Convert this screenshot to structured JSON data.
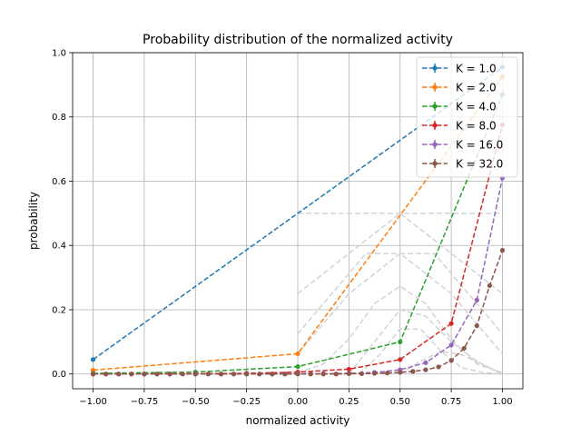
{
  "chart_data": {
    "type": "line",
    "title": "Probability distribution of the normalized activity",
    "xlabel": "normalized activity",
    "ylabel": "probability",
    "xlim": [
      -1.1,
      1.1
    ],
    "ylim": [
      -0.046,
      1.0
    ],
    "xticks": [
      -1.0,
      -0.75,
      -0.5,
      -0.25,
      0.0,
      0.25,
      0.5,
      0.75,
      1.0
    ],
    "xtick_labels": [
      "−1.00",
      "−0.75",
      "−0.50",
      "−0.25",
      "0.00",
      "0.25",
      "0.50",
      "0.75",
      "1.00"
    ],
    "yticks": [
      0.0,
      0.2,
      0.4,
      0.6,
      0.8,
      1.0
    ],
    "ytick_labels": [
      "0.0",
      "0.2",
      "0.4",
      "0.6",
      "0.8",
      "1.0"
    ],
    "grid": true,
    "legend_position": "top-right",
    "series": [
      {
        "name": "K = 1.0",
        "color": "#1f77b4",
        "x": [
          -1.0,
          1.0
        ],
        "y": [
          0.045,
          0.955
        ]
      },
      {
        "name": "K = 2.0",
        "color": "#ff7f0e",
        "x": [
          -1.0,
          0.0,
          1.0
        ],
        "y": [
          0.012,
          0.063,
          0.925
        ]
      },
      {
        "name": "K = 4.0",
        "color": "#2ca02c",
        "x": [
          -1.0,
          -0.5,
          0.0,
          0.5,
          1.0
        ],
        "y": [
          0.002,
          0.006,
          0.023,
          0.1,
          0.87
        ]
      },
      {
        "name": "K = 8.0",
        "color": "#d62728",
        "x": [
          -1.0,
          -0.75,
          -0.5,
          -0.25,
          0.0,
          0.25,
          0.5,
          0.75,
          1.0
        ],
        "y": [
          0.0,
          0.0,
          0.001,
          0.002,
          0.006,
          0.015,
          0.045,
          0.157,
          0.775
        ]
      },
      {
        "name": "K = 16.0",
        "color": "#9467bd",
        "x": [
          -1.0,
          -0.875,
          -0.75,
          -0.625,
          -0.5,
          -0.375,
          -0.25,
          -0.125,
          0.0,
          0.125,
          0.25,
          0.375,
          0.5,
          0.625,
          0.75,
          0.875,
          1.0
        ],
        "y": [
          0.0,
          0.0,
          0.0,
          0.0,
          0.0,
          0.0,
          0.0,
          0.0,
          0.001,
          0.001,
          0.002,
          0.005,
          0.013,
          0.035,
          0.09,
          0.23,
          0.61
        ]
      },
      {
        "name": "K = 32.0",
        "color": "#8c564b",
        "x": [
          -1.0,
          -0.9375,
          -0.875,
          -0.8125,
          -0.75,
          -0.6875,
          -0.625,
          -0.5625,
          -0.5,
          -0.4375,
          -0.375,
          -0.3125,
          -0.25,
          -0.1875,
          -0.125,
          -0.0625,
          0.0,
          0.0625,
          0.125,
          0.1875,
          0.25,
          0.3125,
          0.375,
          0.4375,
          0.5,
          0.5625,
          0.625,
          0.6875,
          0.75,
          0.8125,
          0.875,
          0.9375,
          1.0
        ],
        "y": [
          0.0,
          0.0,
          0.0,
          0.0,
          0.0,
          0.0,
          0.0,
          0.0,
          0.0,
          0.0,
          0.0,
          0.0,
          0.0,
          0.0,
          0.0,
          0.0,
          0.0,
          0.0,
          0.0,
          0.0,
          0.001,
          0.001,
          0.002,
          0.003,
          0.005,
          0.008,
          0.013,
          0.022,
          0.042,
          0.08,
          0.15,
          0.275,
          0.385
        ]
      }
    ],
    "background_curves": [
      {
        "x": [
          0.0,
          1.0
        ],
        "y": [
          0.5,
          0.5
        ]
      },
      {
        "x": [
          0.0,
          0.5,
          1.0
        ],
        "y": [
          0.25,
          0.5,
          0.25
        ]
      },
      {
        "x": [
          0.0,
          0.333,
          0.667,
          1.0
        ],
        "y": [
          0.125,
          0.375,
          0.375,
          0.125
        ]
      },
      {
        "x": [
          0.0,
          0.25,
          0.5,
          0.75,
          1.0
        ],
        "y": [
          0.0625,
          0.25,
          0.375,
          0.25,
          0.0625
        ]
      },
      {
        "x": [
          0.0,
          0.125,
          0.25,
          0.375,
          0.5,
          0.625,
          0.75,
          0.875,
          1.0
        ],
        "y": [
          0.004,
          0.031,
          0.109,
          0.219,
          0.273,
          0.219,
          0.109,
          0.031,
          0.004
        ]
      },
      {
        "x": [
          0.25,
          0.375,
          0.5,
          0.625,
          0.75,
          0.875,
          1.0
        ],
        "y": [
          0.0,
          0.1,
          0.2,
          0.18,
          0.1,
          0.04,
          0.0
        ]
      },
      {
        "x": [
          0.3,
          0.4,
          0.5,
          0.6,
          0.7,
          0.8,
          0.9,
          1.0
        ],
        "y": [
          0.0,
          0.06,
          0.14,
          0.14,
          0.07,
          0.02,
          0.005,
          0.0
        ]
      },
      {
        "x": [
          0.5,
          0.6,
          0.7,
          0.8,
          0.9,
          1.0
        ],
        "y": [
          0.0,
          0.04,
          0.07,
          0.06,
          0.03,
          0.0
        ]
      }
    ]
  }
}
